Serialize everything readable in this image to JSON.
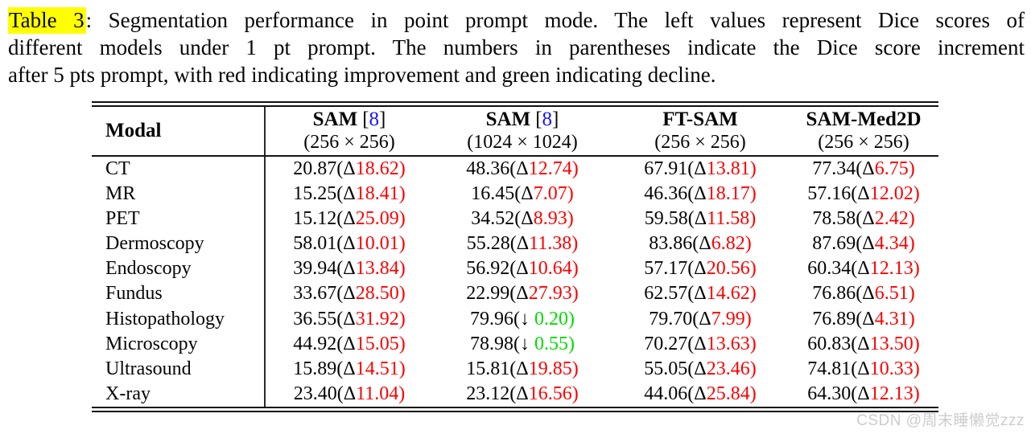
{
  "caption": {
    "highlighted_label": "Table 3",
    "line1_rest": ": Segmentation performance in point prompt mode. The left values represent Dice scores of",
    "line2": "different models under 1 pt prompt. The numbers in parentheses indicate the Dice score increment",
    "line3": "after 5 pts prompt, with red indicating improvement and green indicating decline."
  },
  "table": {
    "modal_header": "Modal",
    "columns": [
      {
        "name": "SAM",
        "cite": "8",
        "resolution": "(256 × 256)"
      },
      {
        "name": "SAM",
        "cite": "8",
        "resolution": "(1024 × 1024)"
      },
      {
        "name": "FT-SAM",
        "cite": "",
        "resolution": "(256 × 256)"
      },
      {
        "name": "SAM-Med2D",
        "cite": "",
        "resolution": "(256 × 256)"
      }
    ],
    "rows": [
      {
        "modal": "CT",
        "cells": [
          {
            "value": "20.87",
            "delta": "18.62",
            "dir": "up"
          },
          {
            "value": "48.36",
            "delta": "12.74",
            "dir": "up"
          },
          {
            "value": "67.91",
            "delta": "13.81",
            "dir": "up"
          },
          {
            "value": "77.34",
            "delta": "6.75",
            "dir": "up"
          }
        ]
      },
      {
        "modal": "MR",
        "cells": [
          {
            "value": "15.25",
            "delta": "18.41",
            "dir": "up"
          },
          {
            "value": "16.45",
            "delta": "7.07",
            "dir": "up"
          },
          {
            "value": "46.36",
            "delta": "18.17",
            "dir": "up"
          },
          {
            "value": "57.16",
            "delta": "12.02",
            "dir": "up"
          }
        ]
      },
      {
        "modal": "PET",
        "cells": [
          {
            "value": "15.12",
            "delta": "25.09",
            "dir": "up"
          },
          {
            "value": "34.52",
            "delta": "8.93",
            "dir": "up"
          },
          {
            "value": "59.58",
            "delta": "11.58",
            "dir": "up"
          },
          {
            "value": "78.58",
            "delta": "2.42",
            "dir": "up"
          }
        ]
      },
      {
        "modal": "Dermoscopy",
        "cells": [
          {
            "value": "58.01",
            "delta": "10.01",
            "dir": "up"
          },
          {
            "value": "55.28",
            "delta": "11.38",
            "dir": "up"
          },
          {
            "value": "83.86",
            "delta": "6.82",
            "dir": "up"
          },
          {
            "value": "87.69",
            "delta": "4.34",
            "dir": "up"
          }
        ]
      },
      {
        "modal": "Endoscopy",
        "cells": [
          {
            "value": "39.94",
            "delta": "13.84",
            "dir": "up"
          },
          {
            "value": "56.92",
            "delta": "10.64",
            "dir": "up"
          },
          {
            "value": "57.17",
            "delta": "20.56",
            "dir": "up"
          },
          {
            "value": "60.34",
            "delta": "12.13",
            "dir": "up"
          }
        ]
      },
      {
        "modal": "Fundus",
        "cells": [
          {
            "value": "33.67",
            "delta": "28.50",
            "dir": "up"
          },
          {
            "value": "22.99",
            "delta": "27.93",
            "dir": "up"
          },
          {
            "value": "62.57",
            "delta": "14.62",
            "dir": "up"
          },
          {
            "value": "76.86",
            "delta": "6.51",
            "dir": "up"
          }
        ]
      },
      {
        "modal": "Histopathology",
        "cells": [
          {
            "value": "36.55",
            "delta": "31.92",
            "dir": "up"
          },
          {
            "value": "79.96",
            "delta": "0.20",
            "dir": "down"
          },
          {
            "value": "79.70",
            "delta": "7.99",
            "dir": "up"
          },
          {
            "value": "76.89",
            "delta": "4.31",
            "dir": "up"
          }
        ]
      },
      {
        "modal": "Microscopy",
        "cells": [
          {
            "value": "44.92",
            "delta": "15.05",
            "dir": "up"
          },
          {
            "value": "78.98",
            "delta": "0.55",
            "dir": "down"
          },
          {
            "value": "70.27",
            "delta": "13.63",
            "dir": "up"
          },
          {
            "value": "60.83",
            "delta": "13.50",
            "dir": "up"
          }
        ]
      },
      {
        "modal": "Ultrasound",
        "cells": [
          {
            "value": "15.89",
            "delta": "14.51",
            "dir": "up"
          },
          {
            "value": "15.81",
            "delta": "19.85",
            "dir": "up"
          },
          {
            "value": "55.05",
            "delta": "23.46",
            "dir": "up"
          },
          {
            "value": "74.81",
            "delta": "10.33",
            "dir": "up"
          }
        ]
      },
      {
        "modal": "X-ray",
        "cells": [
          {
            "value": "23.40",
            "delta": "11.04",
            "dir": "up"
          },
          {
            "value": "23.12",
            "delta": "16.56",
            "dir": "up"
          },
          {
            "value": "44.06",
            "delta": "25.84",
            "dir": "up"
          },
          {
            "value": "64.30",
            "delta": "12.13",
            "dir": "up"
          }
        ]
      }
    ]
  },
  "symbols": {
    "up": "Δ",
    "down": "↓ ",
    "open_paren": "(",
    "close_paren": ")"
  },
  "colors": {
    "improvement_red": "#fe0000",
    "decline_green": "#00dc00",
    "citation_blue": "#1414ff",
    "highlight_yellow": "#ffff00"
  },
  "watermark": "CSDN @周末睡懒觉zzz"
}
